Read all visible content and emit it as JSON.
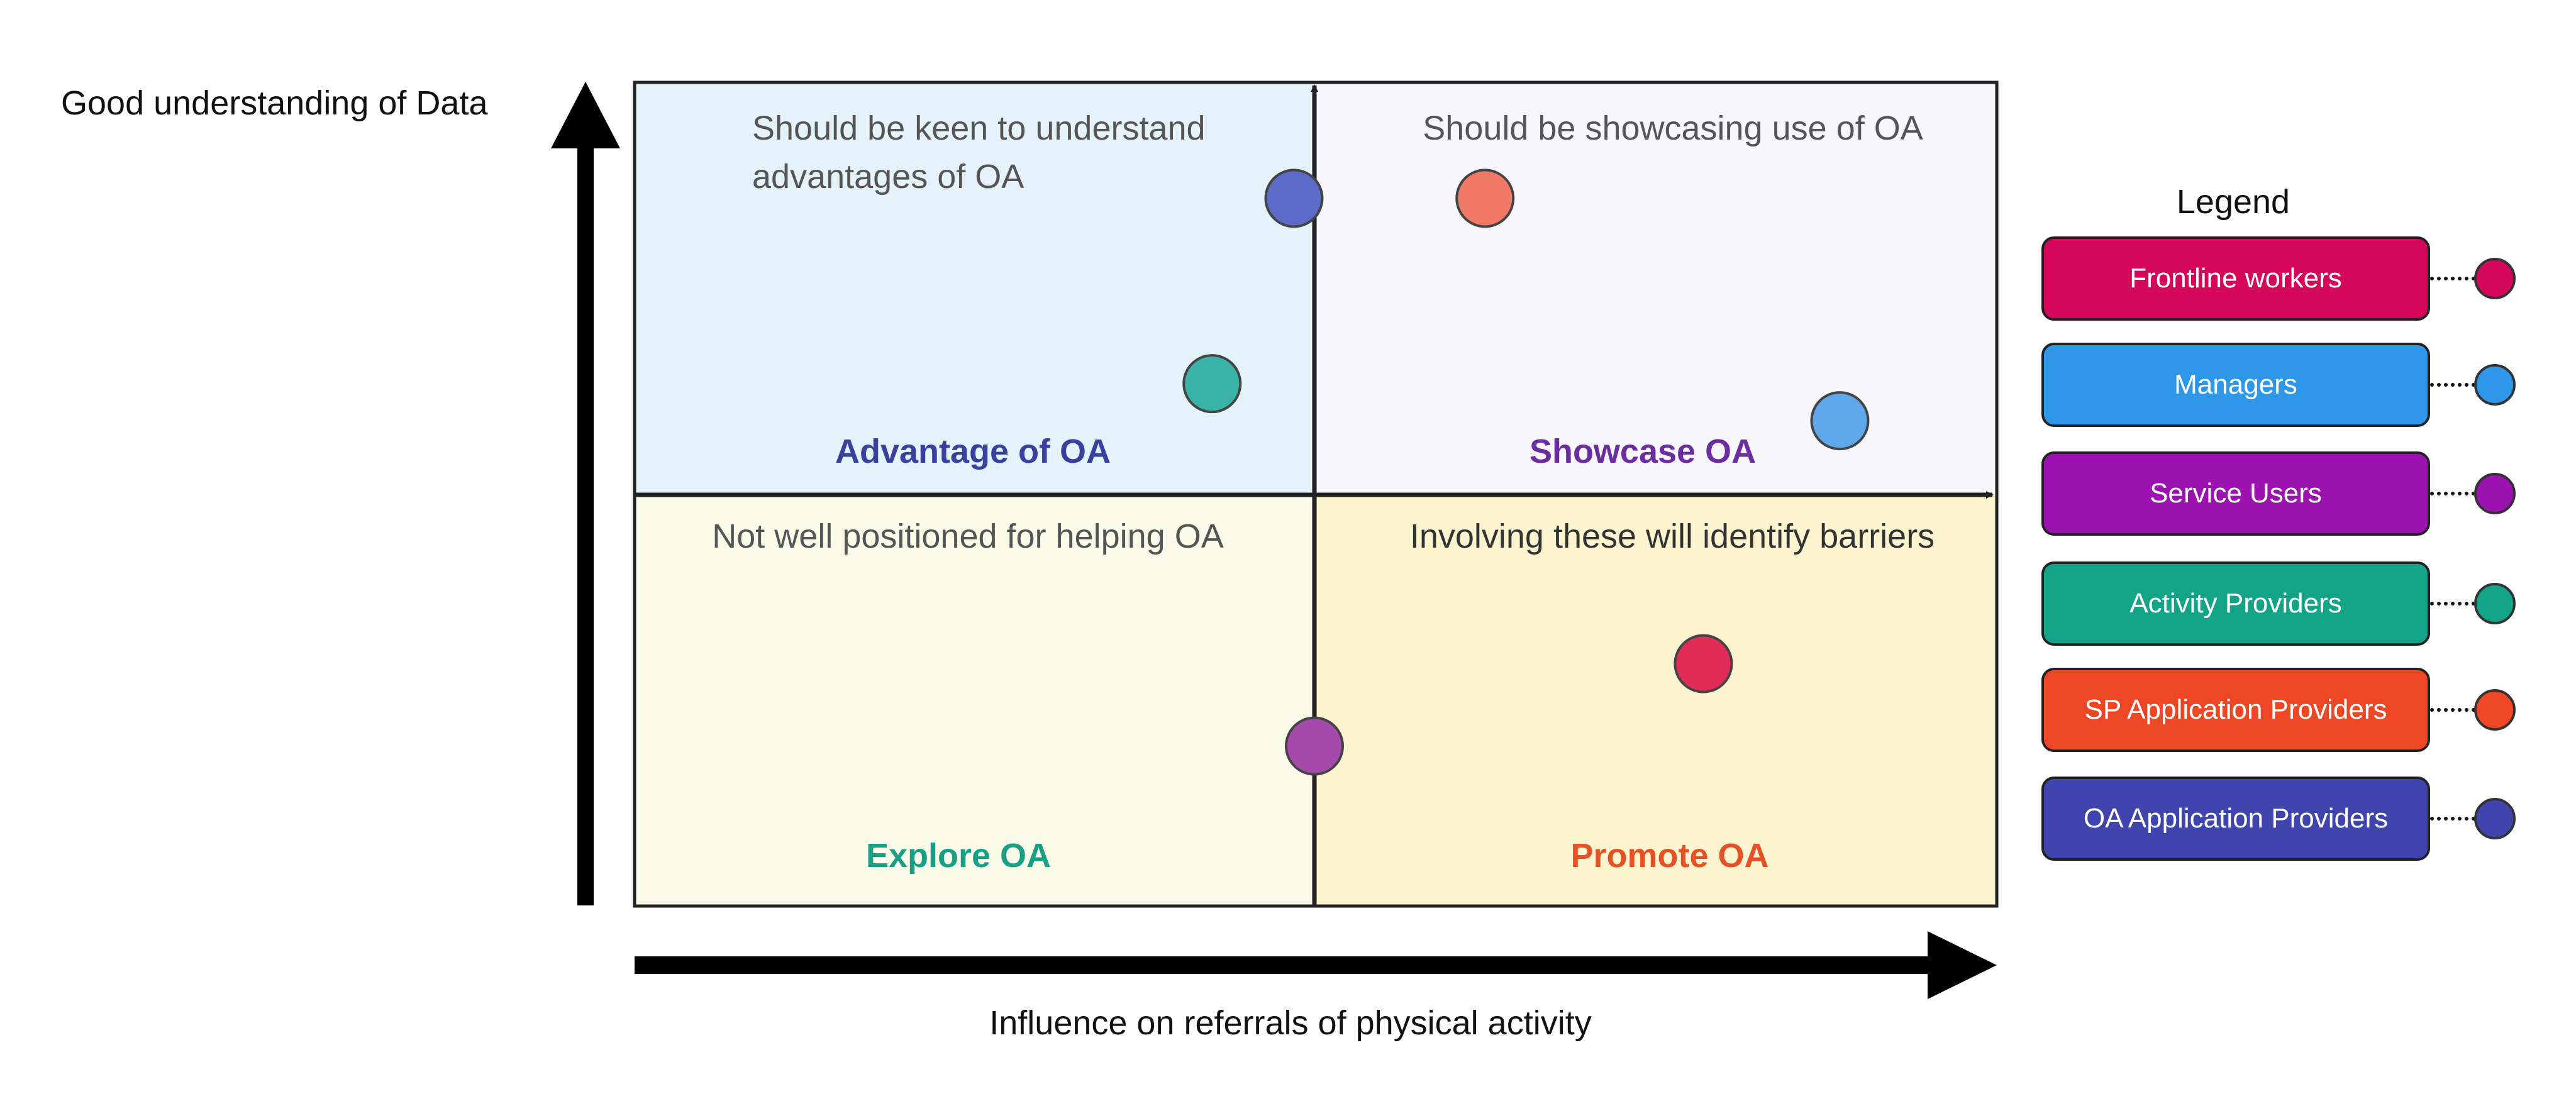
{
  "axes": {
    "y_label": "Good understanding of Data",
    "x_label": "Influence on referrals of physical activity"
  },
  "quadrants": {
    "top_left": {
      "note_line1": "Should be keen to understand",
      "note_line2": "advantages of OA",
      "title": "Advantage of OA",
      "title_color": "#3a40a0",
      "fill": "#e4f3fa"
    },
    "top_right": {
      "note_line1": "Should be showcasing use of OA",
      "title": "Showcase OA",
      "title_color": "#6a2ea0",
      "fill": "#f6f6fb"
    },
    "bottom_left": {
      "note_line1": "Not well positioned for helping OA",
      "title": "Explore OA",
      "title_color": "#17a085",
      "fill": "#f9fbe8"
    },
    "bottom_right": {
      "note_line1": "Involving these will identify barriers",
      "title": "Promote OA",
      "title_color": "#e65125",
      "fill": "#fbf4cf"
    }
  },
  "legend": {
    "title": "Legend",
    "items": [
      {
        "label": "Frontline workers",
        "color": "#d4075a"
      },
      {
        "label": "Managers",
        "color": "#2e97e8"
      },
      {
        "label": "Service Users",
        "color": "#9b12b0"
      },
      {
        "label": "Activity Providers",
        "color": "#13a487"
      },
      {
        "label": "SP Application Providers",
        "color": "#ee4726"
      },
      {
        "label": "OA Application Providers",
        "color": "#4045ae"
      }
    ]
  },
  "stakeholders": [
    {
      "group": "OA Application Providers",
      "color": "#5c6ac8",
      "influence": -0.03,
      "understanding": 0.72
    },
    {
      "group": "SP Application Providers",
      "color": "#f07a66",
      "influence": 0.25,
      "understanding": 0.72
    },
    {
      "group": "Activity Providers",
      "color": "#38b3a6",
      "influence": -0.15,
      "understanding": 0.27
    },
    {
      "group": "Managers",
      "color": "#5ea9ec",
      "influence": 0.77,
      "understanding": 0.18
    },
    {
      "group": "Frontline workers",
      "color": "#e22c58",
      "influence": 0.57,
      "understanding": -0.41
    },
    {
      "group": "Service Users",
      "color": "#a54aab",
      "influence": 0.0,
      "understanding": -0.61
    }
  ]
}
